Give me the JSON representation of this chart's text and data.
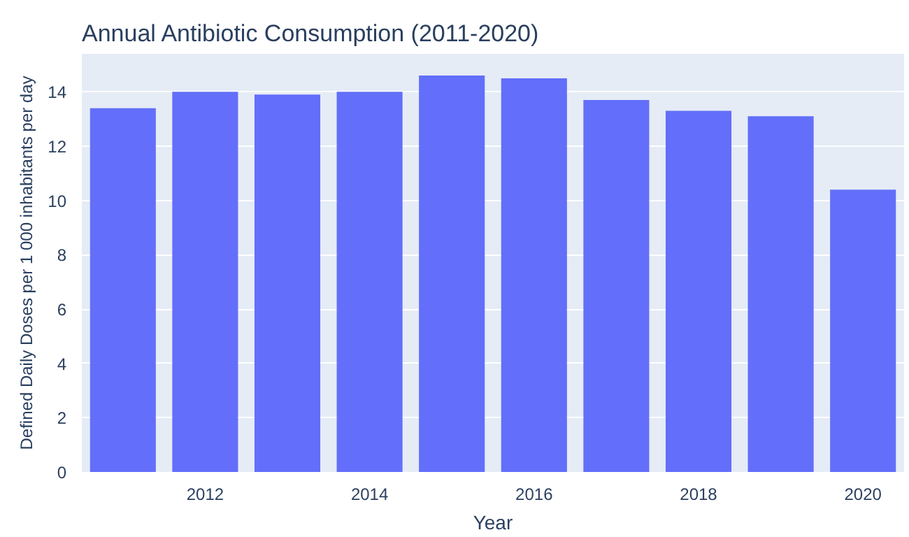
{
  "chart_data": {
    "type": "bar",
    "title": "Annual Antibiotic Consumption (2011-2020)",
    "xlabel": "Year",
    "ylabel": "Defined Daily Doses per 1 000 inhabitants per day",
    "x": [
      2011,
      2012,
      2013,
      2014,
      2015,
      2016,
      2017,
      2018,
      2019,
      2020
    ],
    "values": [
      13.4,
      14.0,
      13.9,
      14.0,
      14.6,
      14.5,
      13.7,
      13.3,
      13.1,
      10.4
    ],
    "color": "#636efa",
    "xlim": [
      2010.5,
      2020.5
    ],
    "xticks": [
      2012,
      2014,
      2016,
      2018,
      2020
    ],
    "ylim": [
      0,
      15.4
    ],
    "yticks": [
      0,
      2,
      4,
      6,
      8,
      10,
      12,
      14
    ],
    "grid": "y"
  }
}
